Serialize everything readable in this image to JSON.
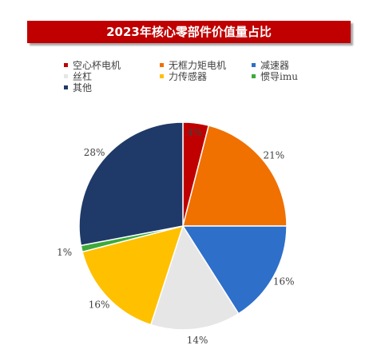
{
  "colors": {
    "title_bg": "#c00000",
    "title_text": "#ffffff"
  },
  "chart_data": {
    "type": "pie",
    "title": "2023年核心零部件价值量占比",
    "legend_position": "top",
    "slices": [
      {
        "label": "空心杯电机",
        "value": 4,
        "display": "4%",
        "color": "#c00000"
      },
      {
        "label": "无框力矩电机",
        "value": 21,
        "display": "21%",
        "color": "#f07000"
      },
      {
        "label": "减速器",
        "value": 16,
        "display": "16%",
        "color": "#2e6fc9"
      },
      {
        "label": "丝杠",
        "value": 14,
        "display": "14%",
        "color": "#e6e6e6"
      },
      {
        "label": "力传感器",
        "value": 16,
        "display": "16%",
        "color": "#ffc000"
      },
      {
        "label": "惯导imu",
        "value": 1,
        "display": "1%",
        "color": "#3daa3a"
      },
      {
        "label": "其他",
        "value": 28,
        "display": "28%",
        "color": "#1f3a68"
      }
    ]
  }
}
